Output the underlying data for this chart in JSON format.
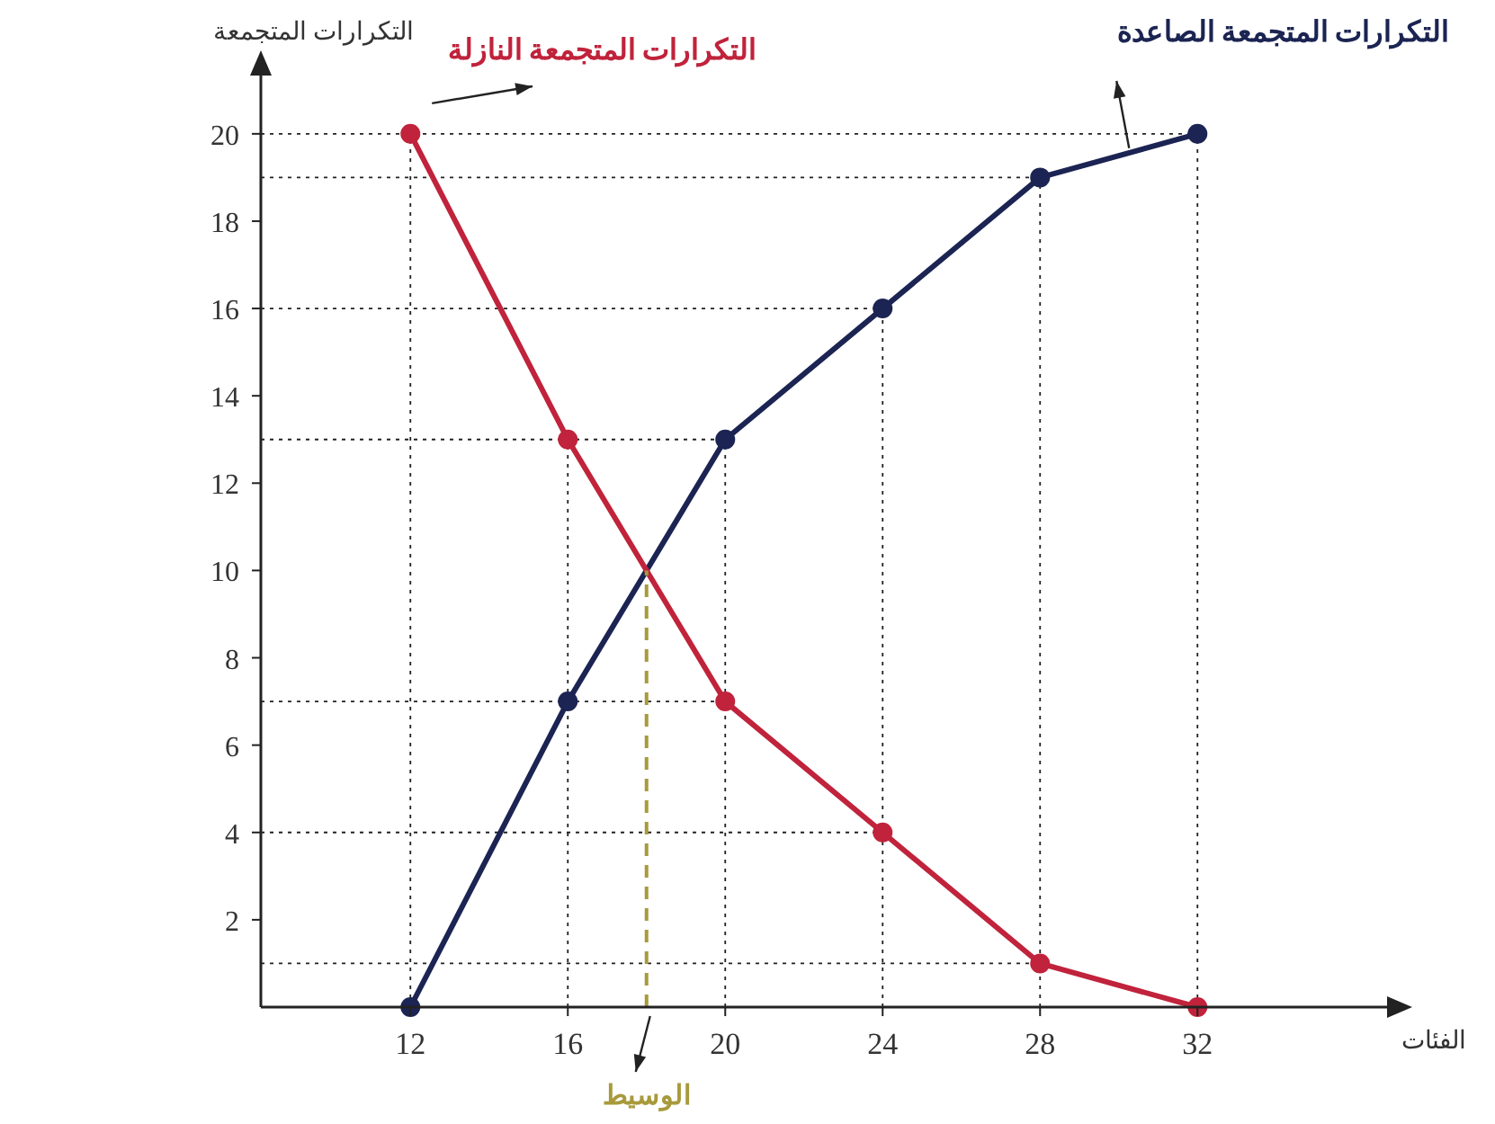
{
  "chart_data": {
    "type": "line",
    "xlabel": "الفئات",
    "ylabel": "التكرارات المتجمعة",
    "x": [
      12,
      16,
      20,
      24,
      28,
      32
    ],
    "xlim": [
      8.2,
      37
    ],
    "xticks": [
      12,
      16,
      20,
      24,
      28,
      32
    ],
    "ylim": [
      0,
      21.5
    ],
    "yticks": [
      2,
      4,
      6,
      8,
      10,
      12,
      14,
      16,
      18,
      20
    ],
    "series": [
      {
        "name": "التكرارات المتجمعة الصاعدة",
        "color": "#1b2452",
        "values": [
          0,
          7,
          13,
          16,
          19,
          20
        ]
      },
      {
        "name": "التكرارات المتجمعة النازلة",
        "color": "#c0233b",
        "values": [
          20,
          13,
          7,
          4,
          1,
          0
        ]
      },
      {
        "x": [
          18,
          18
        ],
        "color": "#a89a3c",
        "values": [
          0,
          10
        ],
        "line_style": "dashed",
        "marker": "none"
      }
    ],
    "annotations": [
      {
        "text": "الوسيط",
        "x": 18,
        "y": 0
      }
    ],
    "ref_lines": [
      {
        "axis": "y",
        "value": 20,
        "line_style": "dotted",
        "color": "#222222"
      },
      {
        "axis": "y",
        "value": 19,
        "line_style": "dotted",
        "color": "#222222"
      },
      {
        "axis": "y",
        "value": 16,
        "line_style": "dotted",
        "color": "#222222"
      },
      {
        "axis": "y",
        "value": 13,
        "line_style": "dotted",
        "color": "#222222"
      },
      {
        "axis": "y",
        "value": 7,
        "line_style": "dotted",
        "color": "#222222"
      },
      {
        "axis": "y",
        "value": 4,
        "line_style": "dotted",
        "color": "#222222"
      },
      {
        "axis": "y",
        "value": 1,
        "line_style": "dotted",
        "color": "#222222"
      },
      {
        "axis": "x",
        "value": 12,
        "line_style": "dotted",
        "color": "#222222"
      },
      {
        "axis": "x",
        "value": 16,
        "line_style": "dotted",
        "color": "#222222"
      },
      {
        "axis": "x",
        "value": 20,
        "line_style": "dotted",
        "color": "#222222"
      },
      {
        "axis": "x",
        "value": 24,
        "line_style": "dotted",
        "color": "#222222"
      },
      {
        "axis": "x",
        "value": 28,
        "line_style": "dotted",
        "color": "#222222"
      },
      {
        "axis": "x",
        "value": 32,
        "line_style": "dotted",
        "color": "#222222"
      }
    ],
    "marker": "circle",
    "line_style": "solid",
    "grid": false,
    "legend": false
  }
}
